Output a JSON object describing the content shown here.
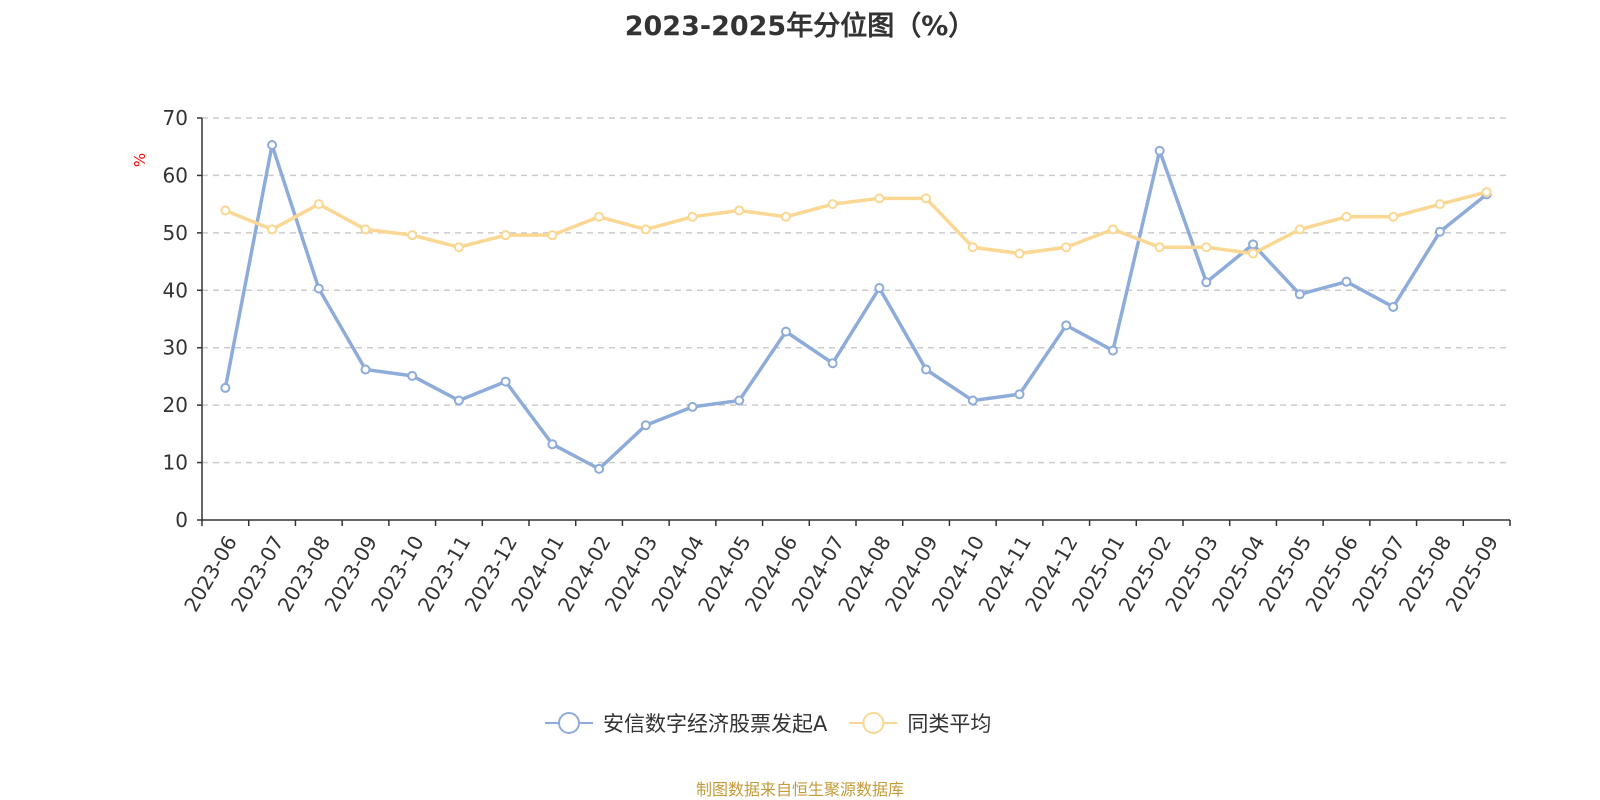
{
  "chart_data": {
    "type": "line",
    "title": "2023-2025年分位图（%）",
    "ylabel": "%",
    "xlabel": "",
    "ylim": [
      0,
      70
    ],
    "yticks": [
      0,
      10,
      20,
      30,
      40,
      50,
      60,
      70
    ],
    "grid": true,
    "legend_position": "bottom",
    "categories": [
      "2023-06",
      "2023-07",
      "2023-08",
      "2023-09",
      "2023-10",
      "2023-11",
      "2023-12",
      "2024-01",
      "2024-02",
      "2024-03",
      "2024-04",
      "2024-05",
      "2024-06",
      "2024-07",
      "2024-08",
      "2024-09",
      "2024-10",
      "2024-11",
      "2024-12",
      "2025-01",
      "2025-02",
      "2025-03",
      "2025-04",
      "2025-05",
      "2025-06",
      "2025-07",
      "2025-08",
      "2025-09"
    ],
    "series": [
      {
        "name": "安信数字经济股票发起A",
        "color": "#8eacd9",
        "values": [
          23,
          65.3,
          40.3,
          26.2,
          25.1,
          20.8,
          24.1,
          13.2,
          8.9,
          16.5,
          19.7,
          20.8,
          32.8,
          27.3,
          40.4,
          26.2,
          20.8,
          21.9,
          33.9,
          29.5,
          64.3,
          41.4,
          48,
          39.3,
          41.5,
          37.1,
          50.2,
          56.7
        ]
      },
      {
        "name": "同类平均",
        "color": "#fbd794",
        "values": [
          53.9,
          50.6,
          55,
          50.6,
          49.6,
          47.5,
          49.6,
          49.6,
          52.8,
          50.6,
          52.8,
          53.9,
          52.8,
          55,
          56,
          56,
          47.5,
          46.4,
          47.5,
          50.6,
          47.5,
          47.5,
          46.4,
          50.6,
          52.8,
          52.8,
          55,
          57.1
        ]
      }
    ]
  },
  "footer": {
    "text": "制图数据来自恒生聚源数据库",
    "color": "#c39b3b"
  },
  "colors": {
    "axis": "#333333",
    "grid": "#cccccc",
    "ylabel": "#ff0000"
  }
}
